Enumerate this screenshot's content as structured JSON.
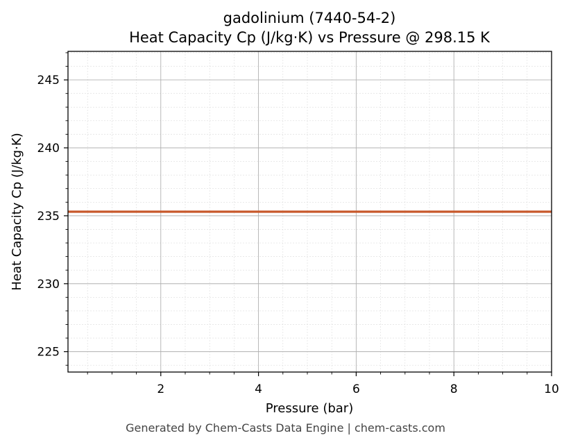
{
  "chart_data": {
    "type": "line",
    "title": "gadolinium (7440-54-2)",
    "subtitle": "Heat Capacity Cp (J/kg·K) vs Pressure @ 298.15 K",
    "xlabel": "Pressure (bar)",
    "ylabel": "Heat Capacity Cp (J/kg·K)",
    "xlim": [
      0.1,
      10
    ],
    "ylim": [
      223.5,
      247.1
    ],
    "xticks": [
      2,
      4,
      6,
      8,
      10
    ],
    "xtick_labels": [
      "2",
      "4",
      "6",
      "8",
      "10"
    ],
    "yticks": [
      225,
      230,
      235,
      240,
      245
    ],
    "ytick_labels": [
      "225",
      "230",
      "235",
      "240",
      "245"
    ],
    "grid": true,
    "series": [
      {
        "color": "#c8582a",
        "x": [
          0.1,
          10
        ],
        "y": [
          235.3,
          235.3
        ]
      }
    ]
  },
  "footer": "Generated by Chem-Casts Data Engine | chem-casts.com"
}
